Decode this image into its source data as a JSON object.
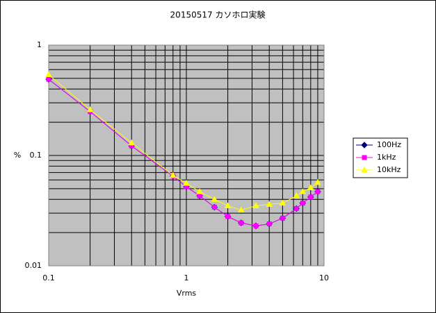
{
  "chart_data": {
    "type": "line",
    "title": "20150517 カソホロ実験",
    "x_label": "Vrms",
    "y_label": "%",
    "x": [
      0.1,
      0.2,
      0.4,
      0.8,
      1.0,
      1.25,
      1.6,
      2.0,
      2.5,
      3.2,
      4.0,
      5.0,
      6.3,
      7.0,
      8.0,
      9.0
    ],
    "series": [
      {
        "name": "100Hz",
        "color": "#000080",
        "marker": "diamond",
        "values": [
          0.49,
          0.25,
          0.122,
          0.065,
          0.052,
          0.043,
          0.034,
          0.028,
          0.0245,
          0.023,
          0.024,
          0.027,
          0.033,
          0.037,
          0.042,
          0.047
        ]
      },
      {
        "name": "1kHz",
        "color": "#ff00ff",
        "marker": "square",
        "values": [
          0.49,
          0.25,
          0.122,
          0.065,
          0.052,
          0.043,
          0.034,
          0.028,
          0.0245,
          0.023,
          0.024,
          0.027,
          0.033,
          0.037,
          0.042,
          0.047
        ]
      },
      {
        "name": "10kHz",
        "color": "#ffff00",
        "marker": "triangle",
        "values": [
          0.54,
          0.26,
          0.13,
          0.066,
          0.056,
          0.047,
          0.04,
          0.035,
          0.032,
          0.035,
          0.036,
          0.037,
          0.043,
          0.047,
          0.051,
          0.057
        ]
      }
    ],
    "xlim": [
      0.1,
      10
    ],
    "xticks": [
      0.1,
      1,
      10
    ],
    "ylim": [
      0.01,
      1
    ],
    "yticks": [
      0.01,
      0.1,
      1
    ],
    "x_log": true,
    "y_log": true,
    "grid": true,
    "legend": "right"
  }
}
